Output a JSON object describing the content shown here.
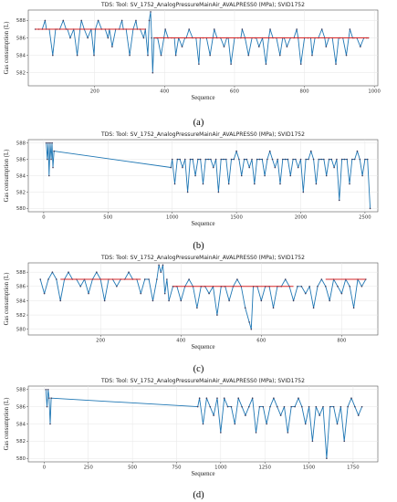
{
  "chart_data": [
    {
      "type": "line",
      "panel_caption": "(a)",
      "title": "TDS: Tool: SV_1752_AnalogPressureMainAir_AVALPRESS0 (MPa); SVID1752",
      "xlabel": "Sequence",
      "ylabel": "Gas consumption (L)",
      "xlim": [
        10,
        1010
      ],
      "ylim": [
        580.5,
        589.2
      ],
      "xticks": [
        200,
        400,
        600,
        800,
        1000
      ],
      "yticks": [
        582,
        584,
        586,
        588
      ],
      "grid": true,
      "series_color": "#1f77b4",
      "reference_color": "#d62728",
      "point_color": "#3b3b5c",
      "reference_lines": [
        {
          "x": [
            30,
            345
          ],
          "y": 587
        },
        {
          "x": [
            370,
            985
          ],
          "y": 586
        }
      ],
      "series": [
        {
          "x": [
            30,
            40,
            50,
            58,
            62,
            70,
            80,
            88,
            92,
            100,
            110,
            118,
            122,
            130,
            140,
            150,
            158,
            162,
            170,
            180,
            190,
            198,
            202,
            210,
            220,
            230,
            238,
            242,
            250,
            260,
            270,
            278,
            282,
            290,
            300,
            310,
            318,
            322,
            330,
            340,
            345,
            352,
            356,
            360,
            363,
            366,
            370,
            376,
            380,
            390,
            398,
            402,
            410,
            420,
            428,
            432,
            440,
            450,
            458,
            462,
            470,
            480,
            490,
            498,
            502,
            510,
            520,
            530,
            538,
            542,
            550,
            560,
            570,
            578,
            582,
            590,
            600,
            610,
            618,
            622,
            630,
            640,
            650,
            658,
            662,
            670,
            680,
            690,
            698,
            702,
            710,
            720,
            730,
            738,
            742,
            750,
            760,
            770,
            778,
            782,
            790,
            800,
            810,
            818,
            822,
            830,
            840,
            850,
            858,
            862,
            870,
            880,
            890,
            898,
            902,
            910,
            920,
            930,
            938,
            942,
            950,
            960,
            970,
            978,
            982
          ],
          "y": [
            587,
            587,
            587,
            588,
            587,
            587,
            584,
            587,
            587,
            587,
            588,
            587,
            587,
            586,
            587,
            584,
            587,
            588,
            587,
            586,
            587,
            584,
            587,
            588,
            587,
            587,
            586,
            587,
            585,
            587,
            587,
            588,
            587,
            587,
            584,
            587,
            588,
            587,
            587,
            586,
            587,
            584,
            588,
            589,
            586,
            582,
            586,
            586,
            586,
            584,
            586,
            587,
            586,
            586,
            586,
            584,
            586,
            585,
            586,
            586,
            587,
            586,
            586,
            583,
            586,
            586,
            586,
            584,
            586,
            587,
            586,
            586,
            585,
            586,
            586,
            583,
            586,
            586,
            586,
            587,
            586,
            584,
            586,
            586,
            586,
            585,
            586,
            583,
            586,
            587,
            586,
            586,
            584,
            586,
            586,
            585,
            586,
            586,
            587,
            586,
            583,
            586,
            586,
            586,
            584,
            586,
            586,
            587,
            586,
            585,
            586,
            586,
            583,
            586,
            586,
            586,
            584,
            587,
            586,
            586,
            586,
            585,
            586,
            586,
            586
          ]
        }
      ]
    },
    {
      "type": "line",
      "panel_caption": "(b)",
      "title": "TDS: Tool: SV_1752_AnalogPressureMainAir_AVALPRESS0 (MPa); SVID1752",
      "xlabel": "Sequence",
      "ylabel": "Gas consumption (L)",
      "xlim": [
        -120,
        2600
      ],
      "ylim": [
        579.6,
        588.4
      ],
      "xticks": [
        0,
        500,
        1000,
        1500,
        2000,
        2500
      ],
      "yticks": [
        580,
        582,
        584,
        586,
        588
      ],
      "grid": true,
      "series_color": "#1f77b4",
      "reference_color": "#d62728",
      "point_color": "#3b3b5c",
      "reference_lines": [],
      "series": [
        {
          "x": [
            20,
            28,
            35,
            42,
            50,
            58,
            65,
            72,
            80,
            990,
            1000,
            1020,
            1040,
            1060,
            1080,
            1100,
            1120,
            1140,
            1160,
            1180,
            1200,
            1220,
            1240,
            1260,
            1280,
            1300,
            1320,
            1340,
            1360,
            1380,
            1400,
            1420,
            1440,
            1460,
            1480,
            1500,
            1520,
            1540,
            1560,
            1580,
            1600,
            1620,
            1640,
            1660,
            1680,
            1700,
            1720,
            1740,
            1760,
            1780,
            1800,
            1820,
            1840,
            1860,
            1880,
            1900,
            1920,
            1940,
            1960,
            1980,
            2000,
            2020,
            2040,
            2060,
            2080,
            2100,
            2120,
            2140,
            2160,
            2180,
            2200,
            2220,
            2240,
            2260,
            2280,
            2300,
            2320,
            2340,
            2360,
            2380,
            2400,
            2420,
            2440,
            2460,
            2480,
            2500,
            2520,
            2540
          ],
          "y": [
            588,
            586,
            588,
            584,
            588,
            586,
            588,
            585,
            587,
            585,
            586,
            583,
            586,
            586,
            585,
            586,
            582,
            586,
            586,
            584,
            586,
            586,
            583,
            586,
            586,
            586,
            585,
            586,
            582,
            586,
            586,
            586,
            583,
            586,
            586,
            587,
            586,
            584,
            586,
            586,
            585,
            586,
            583,
            586,
            586,
            586,
            584,
            586,
            587,
            586,
            585,
            586,
            583,
            586,
            586,
            586,
            584,
            586,
            586,
            585,
            586,
            582,
            586,
            586,
            587,
            586,
            583,
            586,
            586,
            586,
            584,
            586,
            586,
            585,
            586,
            581,
            586,
            586,
            586,
            583,
            586,
            586,
            587,
            586,
            584,
            586,
            586,
            580
          ]
        }
      ]
    },
    {
      "type": "line",
      "panel_caption": "(c)",
      "title": "TDS: Tool: SV_1752_AnalogPressureMainAir_AVALPRESS0 (MPa); SVID1752",
      "xlabel": "Sequence",
      "ylabel": "Gas consumption (L)",
      "xlim": [
        20,
        890
      ],
      "ylim": [
        579.2,
        589.3
      ],
      "xticks": [
        200,
        400,
        600,
        800
      ],
      "yticks": [
        580,
        582,
        584,
        586,
        588
      ],
      "grid": true,
      "series_color": "#1f77b4",
      "reference_color": "#d62728",
      "point_color": "#3b3b5c",
      "reference_lines": [
        {
          "x": [
            100,
            300
          ],
          "y": 587
        },
        {
          "x": [
            380,
            680
          ],
          "y": 586
        },
        {
          "x": [
            760,
            860
          ],
          "y": 587
        }
      ],
      "series": [
        {
          "x": [
            50,
            60,
            70,
            80,
            90,
            100,
            110,
            120,
            130,
            140,
            150,
            160,
            170,
            180,
            190,
            200,
            210,
            220,
            230,
            240,
            250,
            260,
            270,
            280,
            290,
            300,
            310,
            320,
            330,
            340,
            345,
            350,
            355,
            360,
            365,
            370,
            380,
            390,
            400,
            410,
            420,
            430,
            440,
            450,
            460,
            470,
            480,
            490,
            500,
            510,
            520,
            530,
            540,
            550,
            560,
            570,
            575,
            580,
            590,
            600,
            610,
            620,
            630,
            640,
            650,
            660,
            670,
            680,
            690,
            700,
            710,
            720,
            730,
            740,
            750,
            760,
            770,
            780,
            790,
            800,
            810,
            820,
            830,
            840,
            850,
            860
          ],
          "y": [
            587,
            585,
            587,
            588,
            587,
            584,
            587,
            588,
            587,
            587,
            586,
            587,
            585,
            587,
            588,
            587,
            584,
            587,
            587,
            586,
            587,
            587,
            588,
            587,
            587,
            585,
            587,
            587,
            584,
            587,
            589,
            588,
            589,
            585,
            587,
            584,
            586,
            586,
            584,
            586,
            587,
            586,
            583,
            586,
            586,
            585,
            586,
            582,
            586,
            586,
            584,
            586,
            587,
            586,
            583,
            581,
            580,
            586,
            586,
            584,
            586,
            586,
            583,
            586,
            586,
            587,
            586,
            584,
            586,
            586,
            585,
            586,
            583,
            586,
            587,
            586,
            584,
            587,
            586,
            585,
            587,
            586,
            583,
            587,
            586,
            587
          ]
        }
      ]
    },
    {
      "type": "line",
      "panel_caption": "(d)",
      "title": "TDS: Tool: SV_1752_AnalogPressureMainAir_AVALPRESS0 (MPa); SVID1752",
      "xlabel": "Sequence",
      "ylabel": "Gas consumption (L)",
      "xlim": [
        -90,
        1890
      ],
      "ylim": [
        579.6,
        588.4
      ],
      "xticks": [
        0,
        250,
        500,
        750,
        1000,
        1250,
        1500,
        1750
      ],
      "yticks": [
        580,
        582,
        584,
        586,
        588
      ],
      "grid": true,
      "series_color": "#1f77b4",
      "reference_color": "#d62728",
      "point_color": "#3b3b5c",
      "reference_lines": [],
      "series": [
        {
          "x": [
            10,
            16,
            22,
            28,
            34,
            40,
            870,
            880,
            900,
            920,
            940,
            960,
            980,
            1000,
            1020,
            1040,
            1060,
            1080,
            1100,
            1120,
            1140,
            1160,
            1180,
            1200,
            1220,
            1240,
            1260,
            1280,
            1300,
            1320,
            1340,
            1360,
            1380,
            1400,
            1420,
            1440,
            1460,
            1480,
            1500,
            1520,
            1540,
            1560,
            1580,
            1600,
            1620,
            1640,
            1660,
            1680,
            1700,
            1720,
            1740,
            1760,
            1780,
            1800
          ],
          "y": [
            588,
            586,
            588,
            587,
            584,
            587,
            586,
            587,
            584,
            587,
            586,
            585,
            587,
            583,
            587,
            586,
            586,
            584,
            587,
            586,
            585,
            586,
            587,
            583,
            586,
            586,
            584,
            586,
            587,
            586,
            585,
            586,
            583,
            586,
            586,
            587,
            586,
            584,
            586,
            582,
            586,
            585,
            586,
            580,
            586,
            586,
            584,
            586,
            582,
            586,
            587,
            586,
            585,
            586
          ]
        }
      ]
    }
  ]
}
